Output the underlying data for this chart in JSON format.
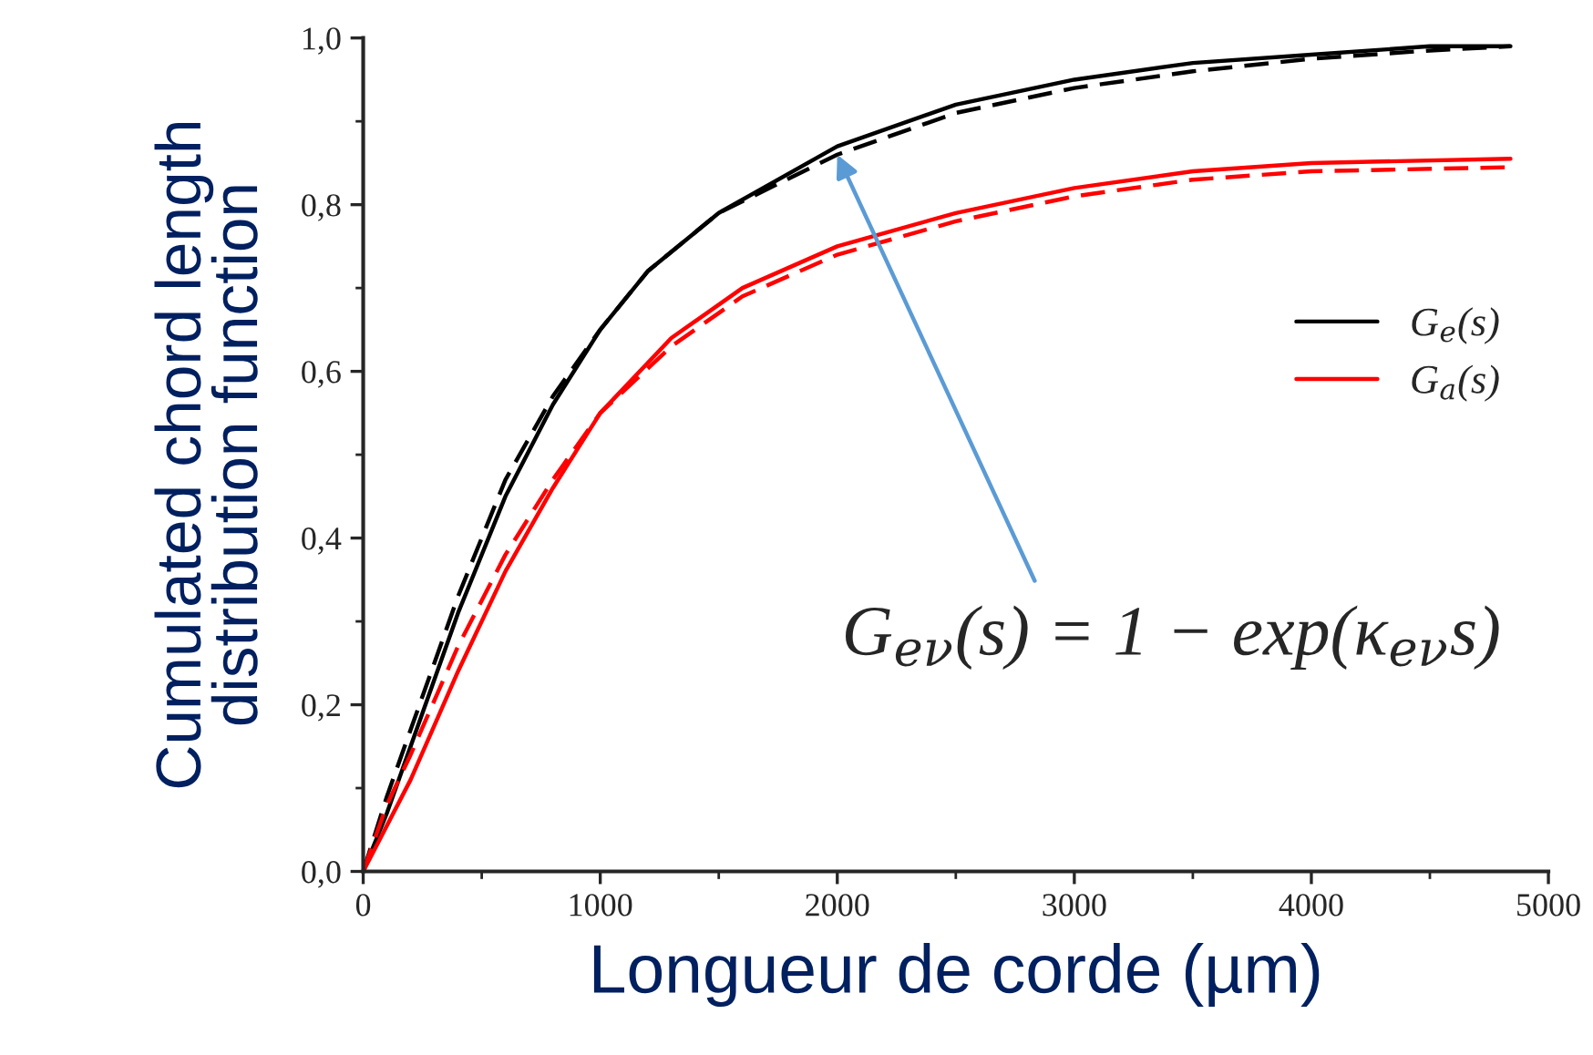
{
  "chart_data": {
    "type": "line",
    "xlabel": "Longueur de corde (µm)",
    "ylabel": "Cumulated chord length\ndistribution function",
    "xlim": [
      0,
      5000
    ],
    "xticks": [
      0,
      1000,
      2000,
      3000,
      4000,
      5000
    ],
    "ylim": [
      0,
      1.0
    ],
    "yticks": [
      {
        "value": 0,
        "label": "0,0"
      },
      {
        "value": 0.2,
        "label": "0,2"
      },
      {
        "value": 0.4,
        "label": "0,4"
      },
      {
        "value": 0.6,
        "label": "0,6"
      },
      {
        "value": 0.8,
        "label": "0,8"
      },
      {
        "value": 1.0,
        "label": "1,0"
      }
    ],
    "grid": false,
    "legend": "right",
    "marker": "none",
    "series": [
      {
        "name": "G$_{e}$(s)",
        "color": "#000000",
        "line_style": "solid",
        "x": [
          0,
          100,
          200,
          400,
          600,
          800,
          1000,
          1200,
          1500,
          2000,
          2500,
          3000,
          3500,
          4000,
          4500,
          4840
        ],
        "values": [
          0,
          0.07,
          0.15,
          0.31,
          0.45,
          0.56,
          0.65,
          0.72,
          0.79,
          0.87,
          0.92,
          0.95,
          0.97,
          0.98,
          0.99,
          0.99
        ]
      },
      {
        "name": "G$_{a}$(s)",
        "color": "#ff0000",
        "line_style": "solid",
        "x": [
          0,
          200,
          400,
          600,
          800,
          1000,
          1300,
          1600,
          2000,
          2500,
          3000,
          3500,
          4000,
          4840
        ],
        "values": [
          0,
          0.11,
          0.24,
          0.36,
          0.46,
          0.55,
          0.64,
          0.7,
          0.75,
          0.79,
          0.82,
          0.84,
          0.85,
          0.855
        ]
      },
      {
        "color": "#000000",
        "line_style": "dashed",
        "x": [
          0,
          100,
          200,
          400,
          600,
          800,
          1000,
          1200,
          1500,
          2000,
          2500,
          3000,
          3500,
          4000,
          4500,
          4840
        ],
        "values": [
          0,
          0.09,
          0.17,
          0.33,
          0.47,
          0.57,
          0.65,
          0.72,
          0.79,
          0.86,
          0.91,
          0.94,
          0.96,
          0.975,
          0.985,
          0.99
        ]
      },
      {
        "color": "#ff0000",
        "line_style": "dashed",
        "x": [
          0,
          100,
          200,
          400,
          600,
          800,
          1000,
          1300,
          1600,
          2000,
          2500,
          3000,
          3500,
          4000,
          4840
        ],
        "values": [
          0,
          0.08,
          0.14,
          0.27,
          0.38,
          0.47,
          0.55,
          0.63,
          0.69,
          0.74,
          0.78,
          0.81,
          0.83,
          0.84,
          0.845
        ]
      }
    ],
    "annotations": [
      {
        "text": "G$_{eν}$(s) = 1 − exp(κ$_{eν}$s)",
        "x": 2000,
        "y": 0.86
      }
    ]
  }
}
